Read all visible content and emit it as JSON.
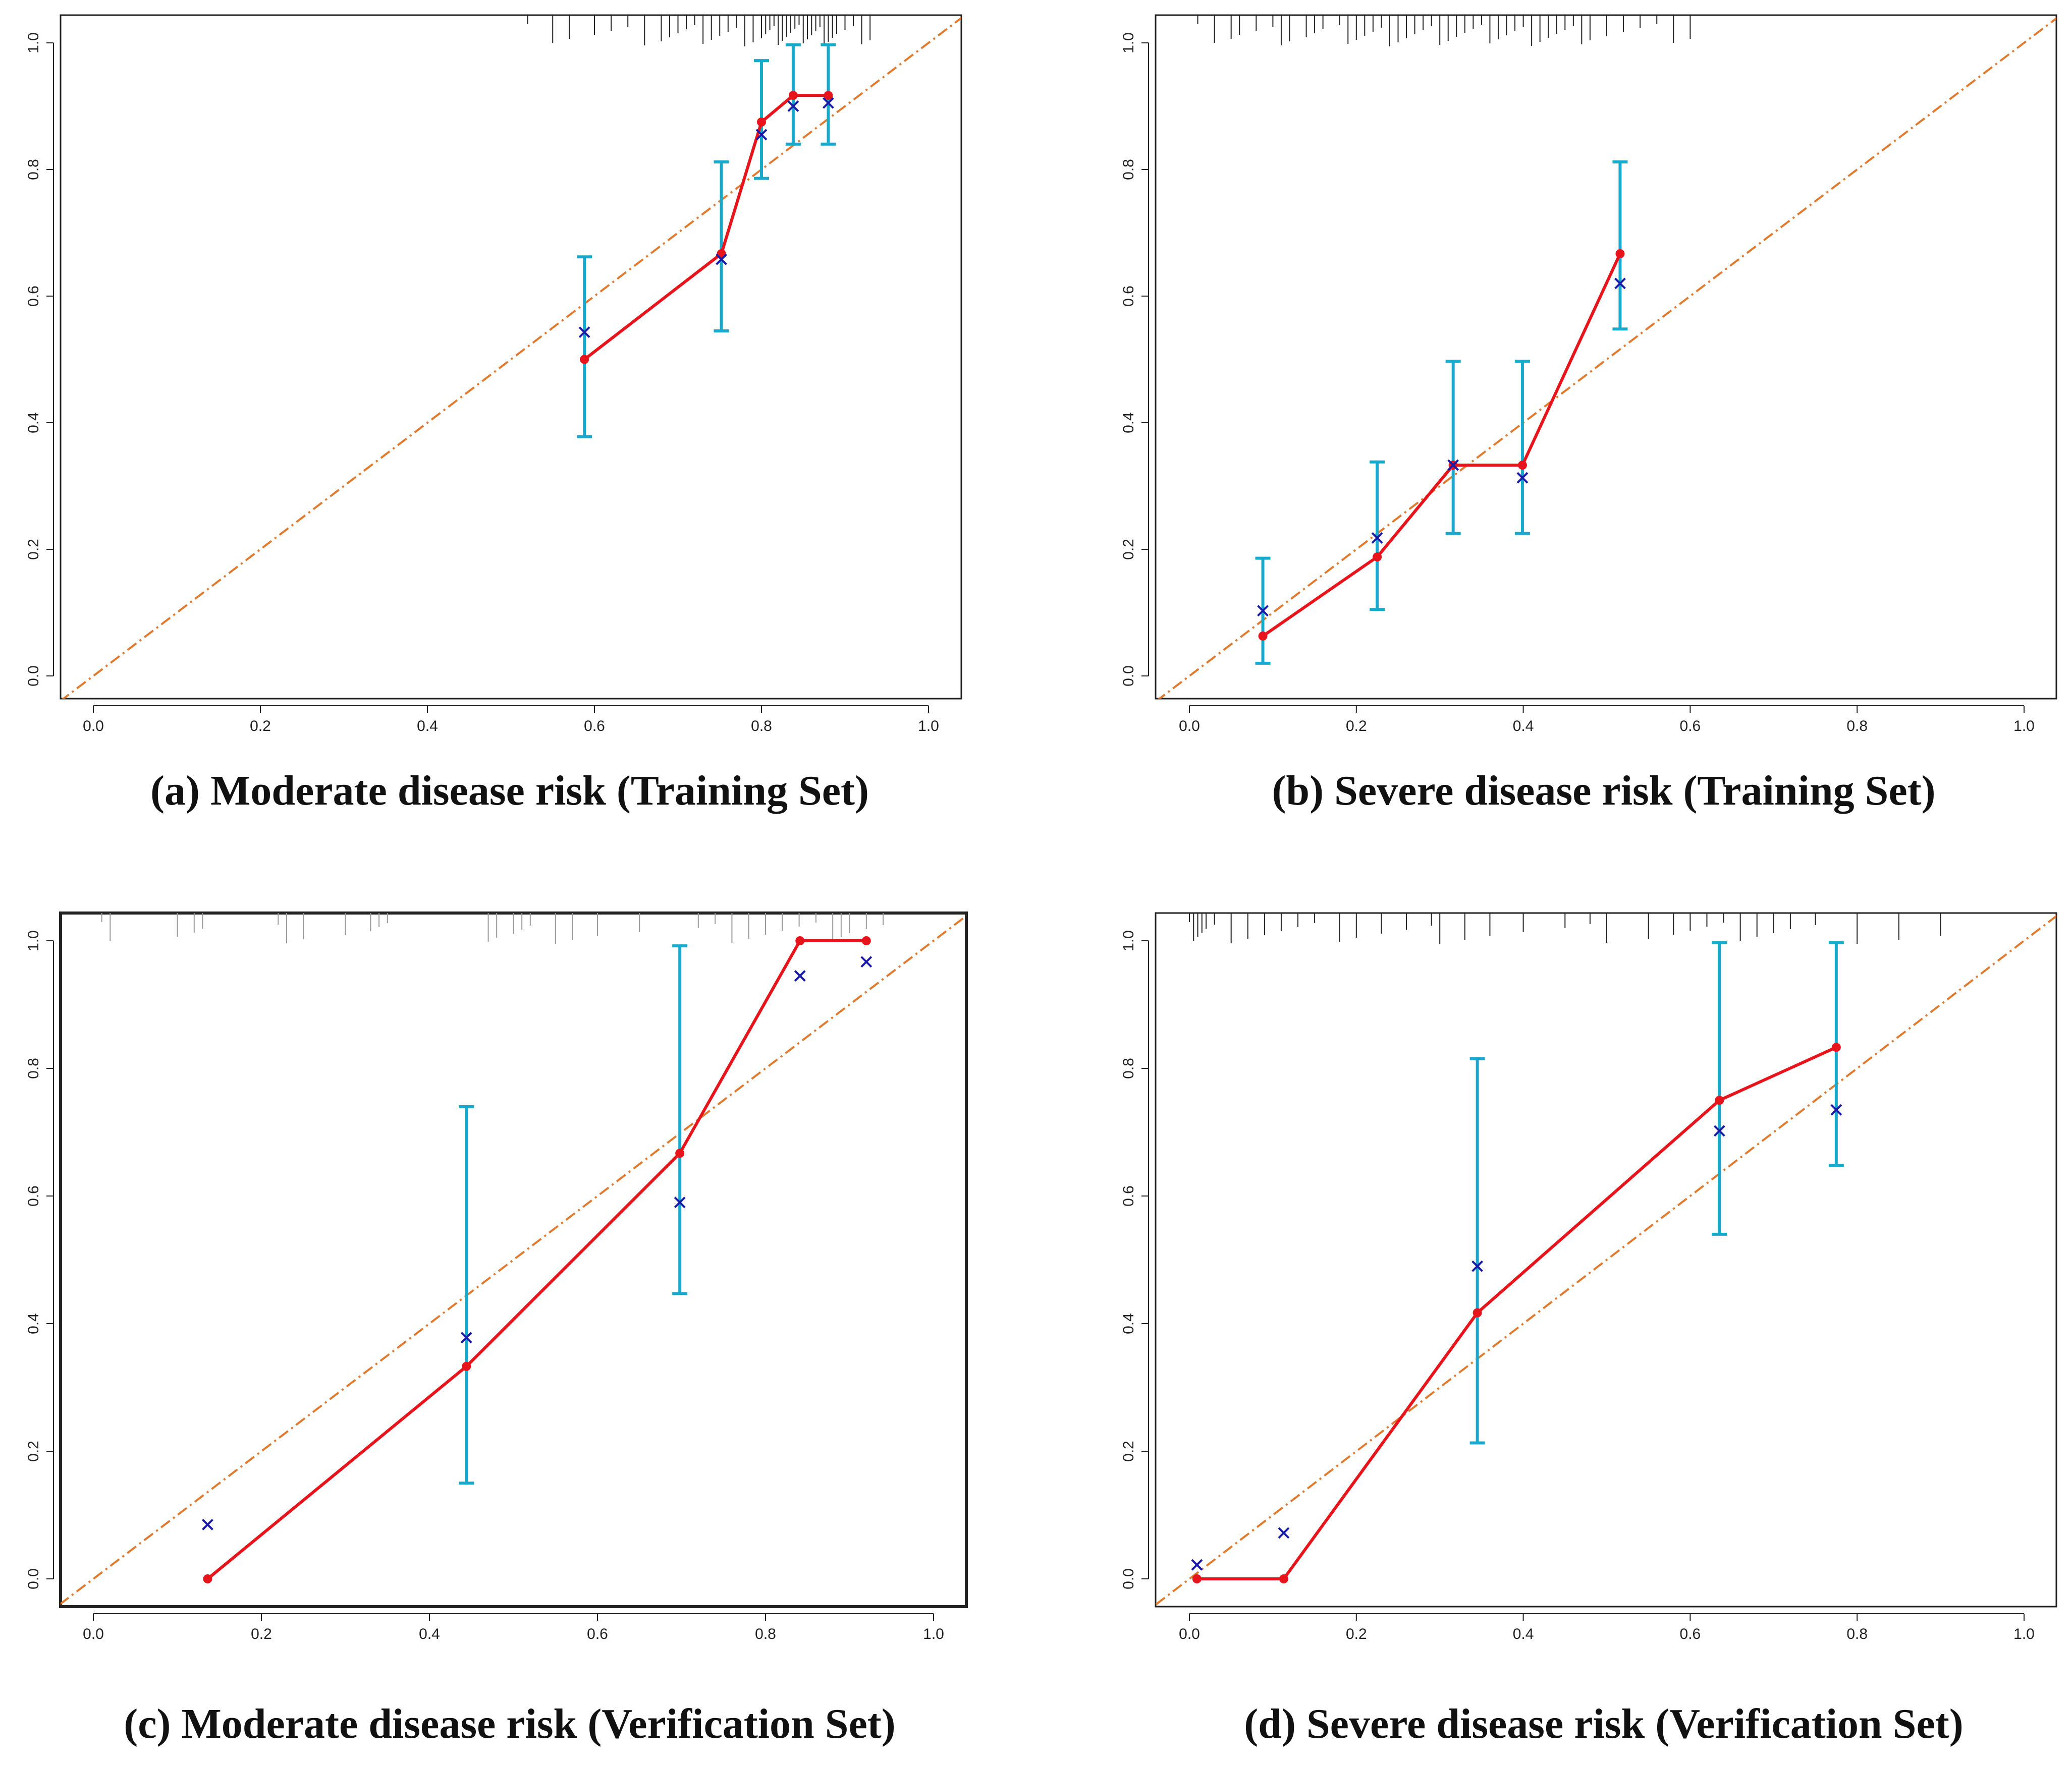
{
  "colors": {
    "observed_line": "#e8141c",
    "apparent_marker": "#1a1aa8",
    "error_bar": "#18aacc",
    "ideal_line": "#e07a2e",
    "rug": "#222222",
    "frame": "#222222"
  },
  "chart_data": [
    {
      "type": "line",
      "title": "(a) Moderate disease risk (Training Set)",
      "xlim": [
        0,
        1
      ],
      "ylim": [
        0,
        1
      ],
      "xticks": [
        "0.0",
        "0.2",
        "0.4",
        "0.6",
        "0.8",
        "1.0"
      ],
      "yticks": [
        "0.0",
        "0.2",
        "0.4",
        "0.6",
        "0.8",
        "1.0"
      ],
      "grid": false,
      "series": [
        {
          "role": "observed",
          "x": [
            0.588,
            0.752,
            0.8,
            0.838,
            0.88
          ],
          "y": [
            0.5,
            0.667,
            0.875,
            0.917,
            0.917
          ]
        },
        {
          "role": "apparent",
          "x": [
            0.588,
            0.752,
            0.8,
            0.838,
            0.88
          ],
          "y": [
            0.543,
            0.658,
            0.855,
            0.9,
            0.905
          ]
        },
        {
          "role": "error",
          "x": [
            0.588,
            0.752,
            0.8,
            0.838,
            0.88
          ],
          "low": [
            0.378,
            0.545,
            0.786,
            0.84,
            0.84
          ],
          "high": [
            0.662,
            0.812,
            0.972,
            0.997,
            0.997
          ]
        },
        {
          "role": "ideal",
          "x": [
            -0.04,
            1.04
          ],
          "y": [
            -0.04,
            1.04
          ]
        }
      ],
      "rug": [
        0.52,
        0.55,
        0.57,
        0.6,
        0.62,
        0.64,
        0.66,
        0.68,
        0.69,
        0.7,
        0.71,
        0.72,
        0.73,
        0.74,
        0.75,
        0.76,
        0.77,
        0.78,
        0.79,
        0.8,
        0.805,
        0.81,
        0.815,
        0.82,
        0.825,
        0.83,
        0.835,
        0.84,
        0.845,
        0.85,
        0.855,
        0.86,
        0.865,
        0.87,
        0.875,
        0.88,
        0.885,
        0.89,
        0.9,
        0.91,
        0.92,
        0.93
      ]
    },
    {
      "type": "line",
      "title": "(b) Severe disease risk (Training Set)",
      "xlim": [
        0,
        1
      ],
      "ylim": [
        0,
        1
      ],
      "xticks": [
        "0.0",
        "0.2",
        "0.4",
        "0.6",
        "0.8",
        "1.0"
      ],
      "yticks": [
        "0.0",
        "0.2",
        "0.4",
        "0.6",
        "0.8",
        "1.0"
      ],
      "grid": false,
      "series": [
        {
          "role": "observed",
          "x": [
            0.088,
            0.225,
            0.316,
            0.399,
            0.516
          ],
          "y": [
            0.063,
            0.188,
            0.333,
            0.333,
            0.667
          ]
        },
        {
          "role": "apparent",
          "x": [
            0.088,
            0.225,
            0.316,
            0.399,
            0.516
          ],
          "y": [
            0.103,
            0.218,
            0.333,
            0.313,
            0.62
          ]
        },
        {
          "role": "error",
          "x": [
            0.088,
            0.225,
            0.316,
            0.399,
            0.516
          ],
          "low": [
            0.02,
            0.105,
            0.225,
            0.225,
            0.548
          ],
          "high": [
            0.186,
            0.338,
            0.497,
            0.497,
            0.812
          ]
        },
        {
          "role": "ideal",
          "x": [
            -0.04,
            1.04
          ],
          "y": [
            -0.04,
            1.04
          ]
        }
      ],
      "rug": [
        0.01,
        0.03,
        0.05,
        0.06,
        0.08,
        0.1,
        0.11,
        0.12,
        0.14,
        0.15,
        0.16,
        0.18,
        0.19,
        0.2,
        0.21,
        0.22,
        0.23,
        0.24,
        0.25,
        0.26,
        0.27,
        0.28,
        0.29,
        0.3,
        0.31,
        0.32,
        0.33,
        0.34,
        0.35,
        0.36,
        0.37,
        0.38,
        0.39,
        0.4,
        0.41,
        0.42,
        0.43,
        0.44,
        0.45,
        0.46,
        0.47,
        0.48,
        0.5,
        0.52,
        0.54,
        0.56,
        0.58,
        0.6
      ]
    },
    {
      "type": "line",
      "title": "(c) Moderate disease risk (Verification Set)",
      "xlim": [
        0,
        1
      ],
      "ylim": [
        0,
        1
      ],
      "xticks": [
        "0.0",
        "0.2",
        "0.4",
        "0.6",
        "0.8",
        "1.0"
      ],
      "yticks": [
        "0.0",
        "0.2",
        "0.4",
        "0.6",
        "0.8",
        "1.0"
      ],
      "grid": false,
      "series": [
        {
          "role": "observed",
          "x": [
            0.136,
            0.444,
            0.698,
            0.841,
            0.92
          ],
          "y": [
            0.0,
            0.333,
            0.667,
            1.0,
            1.0
          ]
        },
        {
          "role": "apparent",
          "x": [
            0.136,
            0.444,
            0.698,
            0.841,
            0.92
          ],
          "y": [
            0.085,
            0.378,
            0.59,
            0.945,
            0.967
          ]
        },
        {
          "role": "error",
          "x": [
            0.444,
            0.698
          ],
          "low": [
            0.15,
            0.447
          ],
          "high": [
            0.74,
            0.992
          ]
        },
        {
          "role": "ideal",
          "x": [
            -0.04,
            1.04
          ],
          "y": [
            -0.04,
            1.04
          ]
        }
      ],
      "rug": [
        0.01,
        0.02,
        0.1,
        0.12,
        0.13,
        0.22,
        0.23,
        0.25,
        0.3,
        0.33,
        0.34,
        0.35,
        0.47,
        0.48,
        0.5,
        0.51,
        0.52,
        0.55,
        0.57,
        0.6,
        0.65,
        0.72,
        0.74,
        0.76,
        0.78,
        0.8,
        0.82,
        0.84,
        0.86,
        0.88,
        0.89,
        0.9,
        0.92,
        0.94
      ]
    },
    {
      "type": "line",
      "title": "(d) Severe disease risk (Verification Set)",
      "xlim": [
        0,
        1
      ],
      "ylim": [
        0,
        1
      ],
      "xticks": [
        "0.0",
        "0.2",
        "0.4",
        "0.6",
        "0.8",
        "1.0"
      ],
      "yticks": [
        "0.0",
        "0.2",
        "0.4",
        "0.6",
        "0.8",
        "1.0"
      ],
      "grid": false,
      "series": [
        {
          "role": "observed",
          "x": [
            0.009,
            0.113,
            0.345,
            0.635,
            0.775
          ],
          "y": [
            0.0,
            0.0,
            0.417,
            0.75,
            0.833
          ]
        },
        {
          "role": "apparent",
          "x": [
            0.009,
            0.113,
            0.345,
            0.635,
            0.775
          ],
          "y": [
            0.022,
            0.072,
            0.49,
            0.702,
            0.735
          ]
        },
        {
          "role": "error",
          "x": [
            0.345,
            0.635,
            0.775
          ],
          "low": [
            0.213,
            0.54,
            0.648
          ],
          "high": [
            0.815,
            0.997,
            0.997
          ]
        },
        {
          "role": "ideal",
          "x": [
            -0.04,
            1.04
          ],
          "y": [
            -0.04,
            1.04
          ]
        }
      ],
      "rug": [
        0.0,
        0.005,
        0.01,
        0.015,
        0.02,
        0.03,
        0.05,
        0.07,
        0.09,
        0.11,
        0.13,
        0.15,
        0.18,
        0.2,
        0.23,
        0.26,
        0.29,
        0.3,
        0.33,
        0.36,
        0.4,
        0.45,
        0.48,
        0.5,
        0.55,
        0.58,
        0.6,
        0.62,
        0.64,
        0.66,
        0.68,
        0.7,
        0.72,
        0.75,
        0.8,
        0.85,
        0.9
      ]
    }
  ]
}
